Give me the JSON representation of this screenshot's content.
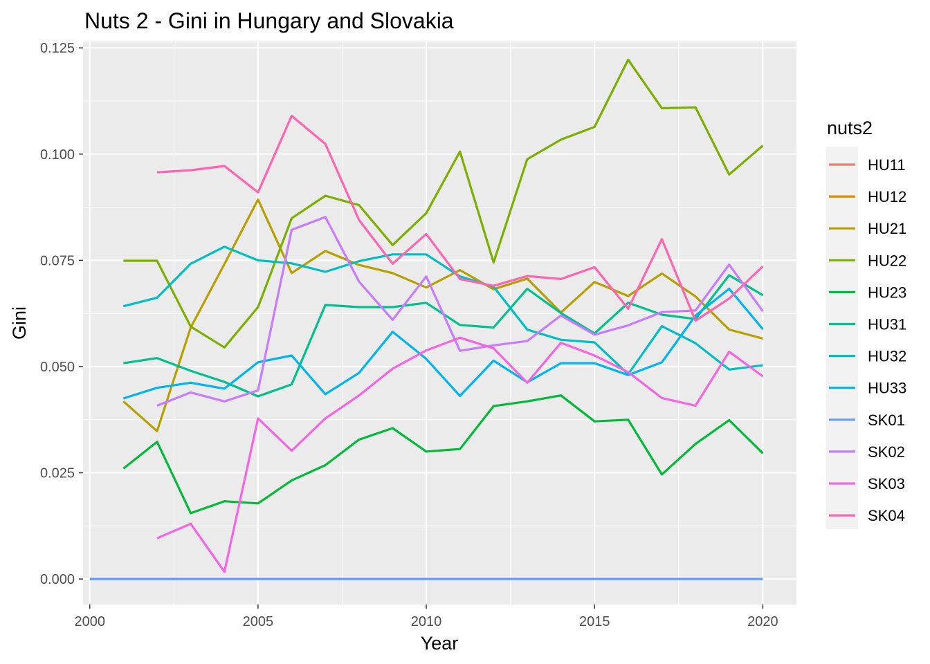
{
  "chart_data": {
    "type": "line",
    "title": "Nuts 2 - Gini in Hungary and Slovakia",
    "xlabel": "Year",
    "ylabel": "Gini",
    "xlim": [
      1999.8,
      2021
    ],
    "ylim": [
      -0.006,
      0.1265
    ],
    "x_ticks": [
      2000,
      2005,
      2010,
      2015,
      2020
    ],
    "x_tick_labels": [
      "2000",
      "2005",
      "2010",
      "2015",
      "2020"
    ],
    "y_ticks": [
      0.0,
      0.025,
      0.05,
      0.075,
      0.1,
      0.125
    ],
    "y_tick_labels": [
      "0.000",
      "0.025",
      "0.050",
      "0.075",
      "0.100",
      "0.125"
    ],
    "grid": true,
    "legend": {
      "title": "nuts2",
      "position": "right"
    },
    "series": [
      {
        "name": "HU11",
        "color": "#F8766D",
        "x": [],
        "y": []
      },
      {
        "name": "HU12",
        "color": "#DE8C00",
        "x": [],
        "y": []
      },
      {
        "name": "HU21",
        "color": "#B79F00",
        "x": [
          2001,
          2002,
          2003,
          2004,
          2005,
          2006,
          2007,
          2008,
          2009,
          2010,
          2011,
          2012,
          2013,
          2014,
          2015,
          2016,
          2017,
          2018,
          2019,
          2020
        ],
        "y": [
          0.0418,
          0.0348,
          0.0592,
          0.0741,
          0.0893,
          0.072,
          0.0772,
          0.0739,
          0.072,
          0.0686,
          0.0727,
          0.0682,
          0.0707,
          0.0627,
          0.0699,
          0.0666,
          0.0719,
          0.0665,
          0.0587,
          0.0566
        ]
      },
      {
        "name": "HU22",
        "color": "#7CAE00",
        "x": [
          2001,
          2002,
          2003,
          2004,
          2005,
          2006,
          2007,
          2008,
          2009,
          2010,
          2011,
          2012,
          2013,
          2014,
          2015,
          2016,
          2017,
          2018,
          2019,
          2020
        ],
        "y": [
          0.0749,
          0.0749,
          0.0594,
          0.0545,
          0.064,
          0.0849,
          0.0902,
          0.088,
          0.0786,
          0.0861,
          0.1006,
          0.0745,
          0.0988,
          0.1034,
          0.1064,
          0.1222,
          0.1108,
          0.111,
          0.0952,
          0.102
        ]
      },
      {
        "name": "HU23",
        "color": "#00BA38",
        "x": [
          2001,
          2002,
          2003,
          2004,
          2005,
          2006,
          2007,
          2008,
          2009,
          2010,
          2011,
          2012,
          2013,
          2014,
          2015,
          2016,
          2017,
          2018,
          2019,
          2020
        ],
        "y": [
          0.026,
          0.0323,
          0.0155,
          0.0183,
          0.0178,
          0.0232,
          0.0268,
          0.0328,
          0.0355,
          0.03,
          0.0306,
          0.0407,
          0.0418,
          0.0432,
          0.0371,
          0.0375,
          0.0246,
          0.0318,
          0.0374,
          0.0296
        ]
      },
      {
        "name": "HU31",
        "color": "#00C08B",
        "x": [
          2001,
          2002,
          2003,
          2004,
          2005,
          2006,
          2007,
          2008,
          2009,
          2010,
          2011,
          2012,
          2013,
          2014,
          2015,
          2016,
          2017,
          2018,
          2019,
          2020
        ],
        "y": [
          0.0508,
          0.052,
          0.049,
          0.0464,
          0.043,
          0.0458,
          0.0645,
          0.064,
          0.064,
          0.065,
          0.0598,
          0.0592,
          0.0683,
          0.0626,
          0.0578,
          0.065,
          0.0622,
          0.0612,
          0.0715,
          0.0668
        ]
      },
      {
        "name": "HU32",
        "color": "#00BFC4",
        "x": [
          2001,
          2002,
          2003,
          2004,
          2005,
          2006,
          2007,
          2008,
          2009,
          2010,
          2011,
          2012,
          2013,
          2014,
          2015,
          2016,
          2017,
          2018,
          2019,
          2020
        ],
        "y": [
          0.0642,
          0.0662,
          0.0742,
          0.0782,
          0.075,
          0.0743,
          0.0723,
          0.0748,
          0.0764,
          0.0764,
          0.0712,
          0.0688,
          0.0587,
          0.0563,
          0.0557,
          0.0482,
          0.0595,
          0.0555,
          0.0493,
          0.0503
        ]
      },
      {
        "name": "HU33",
        "color": "#00B4F0",
        "x": [
          2001,
          2002,
          2003,
          2004,
          2005,
          2006,
          2007,
          2008,
          2009,
          2010,
          2011,
          2012,
          2013,
          2014,
          2015,
          2016,
          2017,
          2018,
          2019,
          2020
        ],
        "y": [
          0.0425,
          0.045,
          0.0462,
          0.0448,
          0.051,
          0.0526,
          0.0435,
          0.0485,
          0.0582,
          0.0518,
          0.0431,
          0.0514,
          0.0463,
          0.0508,
          0.0508,
          0.048,
          0.051,
          0.062,
          0.0683,
          0.0588
        ]
      },
      {
        "name": "SK01",
        "color": "#619CFF",
        "x": [
          2000,
          2020
        ],
        "y": [
          0.0,
          0.0
        ]
      },
      {
        "name": "SK02",
        "color": "#C77CFF",
        "x": [
          2002,
          2003,
          2004,
          2005,
          2006,
          2007,
          2008,
          2009,
          2010,
          2011,
          2012,
          2013,
          2014,
          2015,
          2016,
          2017,
          2018,
          2019,
          2020
        ],
        "y": [
          0.0408,
          0.0439,
          0.0418,
          0.0444,
          0.0822,
          0.0852,
          0.07,
          0.061,
          0.0712,
          0.0537,
          0.055,
          0.056,
          0.062,
          0.0575,
          0.0597,
          0.0628,
          0.0632,
          0.074,
          0.063
        ]
      },
      {
        "name": "SK03",
        "color": "#F564E3",
        "x": [
          2002,
          2003,
          2004,
          2005,
          2006,
          2007,
          2008,
          2009,
          2010,
          2011,
          2012,
          2013,
          2014,
          2015,
          2016,
          2017,
          2018,
          2019,
          2020
        ],
        "y": [
          0.0096,
          0.013,
          0.0017,
          0.0378,
          0.0302,
          0.0378,
          0.0432,
          0.0495,
          0.0538,
          0.0568,
          0.0543,
          0.0462,
          0.0556,
          0.0526,
          0.0487,
          0.0426,
          0.0408,
          0.0535,
          0.0477
        ]
      },
      {
        "name": "SK04",
        "color": "#FF64B0",
        "x": [
          2002,
          2003,
          2004,
          2005,
          2006,
          2007,
          2008,
          2009,
          2010,
          2011,
          2012,
          2013,
          2014,
          2015,
          2016,
          2017,
          2018,
          2019,
          2020
        ],
        "y": [
          0.0957,
          0.0962,
          0.0972,
          0.091,
          0.109,
          0.1024,
          0.0845,
          0.0742,
          0.0812,
          0.0706,
          0.069,
          0.0713,
          0.0706,
          0.0734,
          0.0636,
          0.08,
          0.0608,
          0.066,
          0.0736
        ]
      }
    ]
  }
}
